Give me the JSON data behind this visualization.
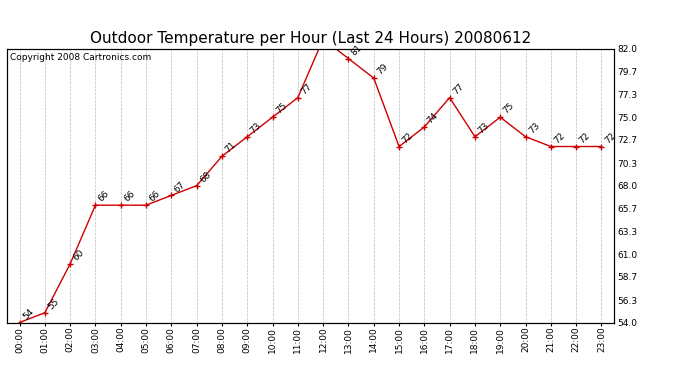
{
  "title": "Outdoor Temperature per Hour (Last 24 Hours) 20080612",
  "copyright": "Copyright 2008 Cartronics.com",
  "hours": [
    "00:00",
    "01:00",
    "02:00",
    "03:00",
    "04:00",
    "05:00",
    "06:00",
    "07:00",
    "08:00",
    "09:00",
    "10:00",
    "11:00",
    "12:00",
    "13:00",
    "14:00",
    "15:00",
    "16:00",
    "17:00",
    "18:00",
    "19:00",
    "20:00",
    "21:00",
    "22:00",
    "23:00"
  ],
  "temps": [
    54,
    55,
    60,
    66,
    66,
    66,
    67,
    68,
    71,
    73,
    75,
    77,
    83,
    81,
    79,
    72,
    74,
    77,
    73,
    75,
    73,
    72,
    72,
    72
  ],
  "ylim": [
    54.0,
    82.0
  ],
  "yticks_right": [
    54.0,
    56.3,
    58.7,
    61.0,
    63.3,
    65.7,
    68.0,
    70.3,
    72.7,
    75.0,
    77.3,
    79.7,
    82.0
  ],
  "line_color": "#cc0000",
  "marker_color": "#cc0000",
  "bg_color": "#ffffff",
  "grid_color": "#bbbbbb",
  "title_fontsize": 11,
  "label_fontsize": 6.5,
  "tick_fontsize": 6.5,
  "copyright_fontsize": 6.5
}
